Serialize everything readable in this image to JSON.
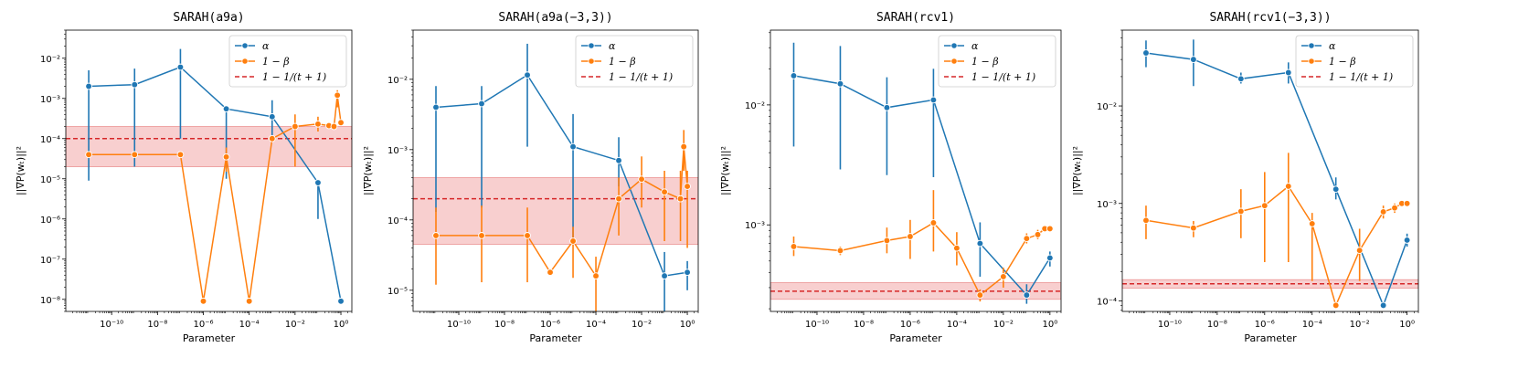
{
  "colors": {
    "alpha": "#1f77b4",
    "beta": "#ff7f0e",
    "ref": "#d62728",
    "band": "#f4b5b5"
  },
  "chart_data": [
    {
      "type": "line",
      "title": "SARAH(a9a)",
      "xlabel": "Parameter",
      "ylabel": "||∇P(wₜ)||²",
      "xscale": "log",
      "yscale": "log",
      "xlim": [
        1e-12,
        3
      ],
      "ylim": [
        5e-09,
        0.05
      ],
      "xticks": [
        {
          "v": 1e-10,
          "label": "10⁻¹⁰"
        },
        {
          "v": 1e-08,
          "label": "10⁻⁸"
        },
        {
          "v": 1e-06,
          "label": "10⁻⁶"
        },
        {
          "v": 0.0001,
          "label": "10⁻⁴"
        },
        {
          "v": 0.01,
          "label": "10⁻²"
        },
        {
          "v": 1,
          "label": "10⁰"
        }
      ],
      "yticks": [
        {
          "v": 1e-08,
          "label": "10⁻⁸"
        },
        {
          "v": 1e-07,
          "label": "10⁻⁷"
        },
        {
          "v": 1e-06,
          "label": "10⁻⁶"
        },
        {
          "v": 1e-05,
          "label": "10⁻⁵"
        },
        {
          "v": 0.0001,
          "label": "10⁻⁴"
        },
        {
          "v": 0.001,
          "label": "10⁻³"
        },
        {
          "v": 0.01,
          "label": "10⁻²"
        }
      ],
      "legend": {
        "position": "top-right",
        "entries": [
          "α",
          "1 − β",
          "1 − 1/(t + 1)"
        ]
      },
      "reference": {
        "value": 0.0001,
        "band": [
          2e-05,
          0.0002
        ]
      },
      "series": [
        {
          "name": "α",
          "color_key": "alpha",
          "x": [
            1e-11,
            1e-09,
            1e-07,
            1e-05,
            0.001,
            0.1,
            1
          ],
          "y": [
            0.002,
            0.0022,
            0.006,
            0.00055,
            0.00035,
            8e-06,
            9e-09
          ],
          "err_low": [
            9e-06,
            2e-05,
            0.0001,
            1e-05,
            9e-05,
            1e-06,
            null
          ],
          "err_high": [
            0.005,
            0.0055,
            0.017,
            0.0006,
            0.0009,
            9e-06,
            null
          ]
        },
        {
          "name": "1 − β",
          "color_key": "beta",
          "x": [
            1e-11,
            1e-09,
            1e-07,
            1e-06,
            1e-05,
            0.0001,
            0.001,
            0.01,
            0.1,
            0.3,
            0.5,
            0.7,
            1
          ],
          "y": [
            4e-05,
            4e-05,
            4e-05,
            9e-09,
            3.5e-05,
            9e-09,
            0.0001,
            0.0002,
            0.00023,
            0.00021,
            0.0002,
            0.0012,
            0.00025
          ],
          "err_low": [
            null,
            null,
            null,
            null,
            1.5e-05,
            null,
            null,
            2e-05,
            0.00015,
            null,
            null,
            0.0006,
            null
          ],
          "err_high": [
            null,
            null,
            null,
            null,
            6e-05,
            null,
            null,
            0.0004,
            0.00035,
            null,
            null,
            0.0016,
            null
          ]
        }
      ]
    },
    {
      "type": "line",
      "title": "SARAH(a9a(−3,3))",
      "xlabel": "Parameter",
      "ylabel": "||∇P(wₜ)||²",
      "xscale": "log",
      "yscale": "log",
      "xlim": [
        1e-12,
        3
      ],
      "ylim": [
        5e-06,
        0.05
      ],
      "xticks": [
        {
          "v": 1e-10,
          "label": "10⁻¹⁰"
        },
        {
          "v": 1e-08,
          "label": "10⁻⁸"
        },
        {
          "v": 1e-06,
          "label": "10⁻⁶"
        },
        {
          "v": 0.0001,
          "label": "10⁻⁴"
        },
        {
          "v": 0.01,
          "label": "10⁻²"
        },
        {
          "v": 1,
          "label": "10⁰"
        }
      ],
      "yticks": [
        {
          "v": 1e-05,
          "label": "10⁻⁵"
        },
        {
          "v": 0.0001,
          "label": "10⁻⁴"
        },
        {
          "v": 0.001,
          "label": "10⁻³"
        },
        {
          "v": 0.01,
          "label": "10⁻²"
        }
      ],
      "legend": {
        "position": "top-right",
        "entries": [
          "α",
          "1 − β",
          "1 − 1/(t + 1)"
        ]
      },
      "reference": {
        "value": 0.0002,
        "band": [
          4.5e-05,
          0.0004
        ]
      },
      "series": [
        {
          "name": "α",
          "color_key": "alpha",
          "x": [
            1e-11,
            1e-09,
            1e-07,
            1e-05,
            0.001,
            0.1,
            1
          ],
          "y": [
            0.004,
            0.0045,
            0.0115,
            0.0011,
            0.0007,
            1.6e-05,
            1.8e-05
          ],
          "err_low": [
            0.00013,
            0.00015,
            0.0011,
            5e-05,
            0.0003,
            5e-06,
            1e-05
          ],
          "err_high": [
            0.008,
            0.008,
            0.032,
            0.0032,
            0.0015,
            3.5e-05,
            2.6e-05
          ]
        },
        {
          "name": "1 − β",
          "color_key": "beta",
          "x": [
            1e-11,
            1e-09,
            1e-07,
            1e-06,
            1e-05,
            0.0001,
            0.001,
            0.01,
            0.1,
            0.5,
            0.7,
            1
          ],
          "y": [
            6e-05,
            6e-05,
            6e-05,
            1.8e-05,
            5e-05,
            1.6e-05,
            0.0002,
            0.00038,
            0.00025,
            0.0002,
            0.0011,
            0.0003
          ],
          "err_low": [
            1.2e-05,
            1.3e-05,
            1.3e-05,
            null,
            1.5e-05,
            5e-06,
            6e-05,
            0.00015,
            5e-05,
            5e-05,
            0.0005,
            4e-05
          ],
          "err_high": [
            0.00015,
            0.00016,
            0.00015,
            null,
            8e-05,
            3e-05,
            0.0004,
            0.0008,
            0.0005,
            0.0005,
            0.0019,
            0.0005
          ]
        }
      ]
    },
    {
      "type": "line",
      "title": "SARAH(rcv1)",
      "xlabel": "Parameter",
      "ylabel": "||∇P(wₜ)||²",
      "xscale": "log",
      "yscale": "log",
      "xlim": [
        1e-12,
        3
      ],
      "ylim": [
        0.00019,
        0.042
      ],
      "xticks": [
        {
          "v": 1e-10,
          "label": "10⁻¹⁰"
        },
        {
          "v": 1e-08,
          "label": "10⁻⁸"
        },
        {
          "v": 1e-06,
          "label": "10⁻⁶"
        },
        {
          "v": 0.0001,
          "label": "10⁻⁴"
        },
        {
          "v": 0.01,
          "label": "10⁻²"
        },
        {
          "v": 1,
          "label": "10⁰"
        }
      ],
      "yticks": [
        {
          "v": 0.001,
          "label": "10⁻³"
        },
        {
          "v": 0.01,
          "label": "10⁻²"
        }
      ],
      "legend": {
        "position": "top-right",
        "entries": [
          "α",
          "1 − β",
          "1 − 1/(t + 1)"
        ]
      },
      "reference": {
        "value": 0.00028,
        "band": [
          0.00024,
          0.00033
        ]
      },
      "series": [
        {
          "name": "α",
          "color_key": "alpha",
          "x": [
            1e-11,
            1e-09,
            1e-07,
            1e-05,
            0.001,
            0.1,
            1
          ],
          "y": [
            0.0175,
            0.015,
            0.0095,
            0.011,
            0.0007,
            0.00026,
            0.00053
          ],
          "err_low": [
            0.0045,
            0.0029,
            0.0026,
            0.0025,
            0.00037,
            0.00022,
            0.00045
          ],
          "err_high": [
            0.033,
            0.031,
            0.017,
            0.02,
            0.00105,
            0.00032,
            0.0006
          ]
        },
        {
          "name": "1 − β",
          "color_key": "beta",
          "x": [
            1e-11,
            1e-09,
            1e-07,
            1e-06,
            1e-05,
            0.0001,
            0.001,
            0.01,
            0.1,
            0.3,
            0.6,
            1
          ],
          "y": [
            0.00066,
            0.00061,
            0.00074,
            0.0008,
            0.00104,
            0.00064,
            0.00026,
            0.00037,
            0.00077,
            0.00083,
            0.00093,
            0.00093
          ],
          "err_low": [
            0.00055,
            0.00056,
            0.00058,
            0.00052,
            0.0006,
            0.00046,
            0.00023,
            0.0003,
            0.0007,
            0.00076,
            null,
            null
          ],
          "err_high": [
            0.0008,
            0.00066,
            0.00095,
            0.0011,
            0.00195,
            0.00087,
            0.00029,
            0.00044,
            0.00085,
            0.00091,
            null,
            null
          ]
        }
      ]
    },
    {
      "type": "line",
      "title": "SARAH(rcv1(−3,3))",
      "xlabel": "Parameter",
      "ylabel": "||∇P(wₜ)||²",
      "xscale": "log",
      "yscale": "log",
      "xlim": [
        1e-12,
        3
      ],
      "ylim": [
        7.8e-05,
        0.06
      ],
      "xticks": [
        {
          "v": 1e-10,
          "label": "10⁻¹⁰"
        },
        {
          "v": 1e-08,
          "label": "10⁻⁸"
        },
        {
          "v": 1e-06,
          "label": "10⁻⁶"
        },
        {
          "v": 0.0001,
          "label": "10⁻⁴"
        },
        {
          "v": 0.01,
          "label": "10⁻²"
        },
        {
          "v": 1,
          "label": "10⁰"
        }
      ],
      "yticks": [
        {
          "v": 0.0001,
          "label": "10⁻⁴"
        },
        {
          "v": 0.001,
          "label": "10⁻³"
        },
        {
          "v": 0.01,
          "label": "10⁻²"
        }
      ],
      "legend": {
        "position": "top-right",
        "entries": [
          "α",
          "1 − β",
          "1 − 1/(t + 1)"
        ]
      },
      "reference": {
        "value": 0.00015,
        "band": [
          0.000135,
          0.000165
        ]
      },
      "series": [
        {
          "name": "α",
          "color_key": "alpha",
          "x": [
            1e-11,
            1e-09,
            1e-07,
            1e-05,
            0.001,
            0.1,
            1
          ],
          "y": [
            0.035,
            0.03,
            0.019,
            0.022,
            0.0014,
            9e-05,
            0.00042
          ],
          "err_low": [
            0.025,
            0.016,
            0.017,
            0.017,
            0.0011,
            null,
            0.00036
          ],
          "err_high": [
            0.047,
            0.048,
            0.022,
            0.028,
            0.00185,
            null,
            0.00049
          ]
        },
        {
          "name": "1 − β",
          "color_key": "beta",
          "x": [
            1e-11,
            1e-09,
            1e-07,
            1e-06,
            1e-05,
            0.0001,
            0.001,
            0.01,
            0.1,
            0.3,
            0.6,
            1
          ],
          "y": [
            0.00067,
            0.00056,
            0.00083,
            0.00095,
            0.0015,
            0.00062,
            9e-05,
            0.00033,
            0.00082,
            0.0009,
            0.001,
            0.001
          ],
          "err_low": [
            0.00043,
            0.00045,
            0.00044,
            0.00025,
            0.00025,
            0.00016,
            null,
            0.00016,
            0.0007,
            0.0008,
            null,
            null
          ],
          "err_high": [
            0.00095,
            0.00066,
            0.0014,
            0.0021,
            0.0033,
            0.0008,
            null,
            0.00055,
            0.00095,
            0.001,
            null,
            null
          ]
        }
      ]
    }
  ]
}
